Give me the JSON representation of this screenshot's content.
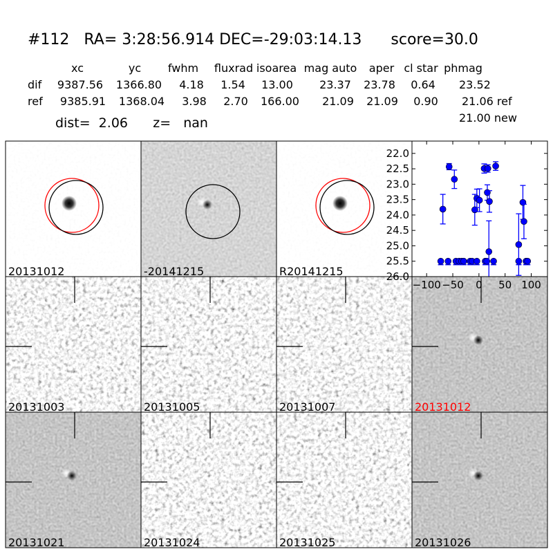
{
  "header": {
    "title": "#112   RA= 3:28:56.914 DEC=-29:03:14.13      score=30.0",
    "columns": [
      "xc",
      "yc",
      "fwhm",
      "fluxrad",
      "isoarea",
      "mag auto",
      "aper",
      "cl star",
      "phmag"
    ],
    "rows": [
      {
        "label": "dif",
        "values": [
          "9387.56",
          "1366.80",
          "4.18",
          "1.54",
          "13.00",
          "23.37",
          "23.78",
          "0.64",
          "23.52"
        ]
      },
      {
        "label": "ref",
        "values": [
          "9385.91",
          "1368.04",
          "3.98",
          "2.70",
          "166.00",
          "21.09",
          "21.09",
          "0.90",
          "21.06 ref"
        ]
      }
    ],
    "extra_phmag": "21.00 new",
    "dist_line": "dist=  2.06      z=   nan"
  },
  "panels": [
    {
      "label": "20131012",
      "style": "light",
      "source": "dark",
      "circles": [
        "red",
        "black"
      ],
      "label_color": "#000000"
    },
    {
      "label": "-20141215",
      "style": "mid",
      "source": "dipole",
      "circles": [
        "black"
      ],
      "label_color": "#000000"
    },
    {
      "label": "R20141215",
      "style": "light",
      "source": "dark",
      "circles": [
        "red",
        "black"
      ],
      "label_color": "#000000"
    },
    {
      "label": "20131003",
      "style": "noisy",
      "source": "none",
      "crosshair": true,
      "label_color": "#000000"
    },
    {
      "label": "20131005",
      "style": "noisy",
      "source": "none",
      "crosshair": true,
      "label_color": "#000000"
    },
    {
      "label": "20131007",
      "style": "noisy",
      "source": "none",
      "crosshair": true,
      "label_color": "#000000"
    },
    {
      "label": "20131012",
      "style": "smooth",
      "source": "dipole",
      "crosshair": true,
      "label_color": "#ff0000"
    },
    {
      "label": "20131021",
      "style": "smooth",
      "source": "dipole",
      "crosshair": true,
      "label_color": "#000000"
    },
    {
      "label": "20131024",
      "style": "noisy",
      "source": "none",
      "crosshair": true,
      "label_color": "#000000"
    },
    {
      "label": "20131025",
      "style": "noisy",
      "source": "none",
      "crosshair": true,
      "label_color": "#000000"
    },
    {
      "label": "20131026",
      "style": "smooth",
      "source": "dipole",
      "crosshair": true,
      "label_color": "#000000"
    }
  ],
  "chart_data": {
    "type": "scatter",
    "title": "",
    "xlabel": "",
    "ylabel": "",
    "xlim": [
      -128,
      131
    ],
    "ylim": [
      26.0,
      21.6
    ],
    "y_inverted": true,
    "xticks": [
      -100,
      -50,
      0,
      50,
      100
    ],
    "xtick_labels": [
      "−100",
      "−50",
      "0",
      "50",
      "100"
    ],
    "yticks": [
      22.0,
      22.5,
      23.0,
      23.5,
      24.0,
      24.5,
      25.0,
      25.5,
      26.0
    ],
    "ytick_labels": [
      "22.0",
      "22.5",
      "23.0",
      "23.5",
      "24.0",
      "24.5",
      "25.0",
      "25.5",
      "26.0"
    ],
    "color": "#0000ff",
    "detections": [
      {
        "x": -69,
        "y": 23.81,
        "err": 0.48
      },
      {
        "x": -57,
        "y": 22.43,
        "err": 0.1
      },
      {
        "x": -47,
        "y": 22.84,
        "err": 0.3
      },
      {
        "x": -8,
        "y": 23.83,
        "err": 0.5
      },
      {
        "x": -4,
        "y": 23.46,
        "err": 0.3
      },
      {
        "x": 1,
        "y": 23.52,
        "err": 0.37
      },
      {
        "x": 10,
        "y": 22.49,
        "err": 0.15
      },
      {
        "x": 17,
        "y": 22.49,
        "err": 0.12
      },
      {
        "x": 16,
        "y": 23.27,
        "err": 0.25
      },
      {
        "x": 20,
        "y": 23.56,
        "err": 0.35
      },
      {
        "x": 19,
        "y": 25.19,
        "err": 1.0
      },
      {
        "x": 32,
        "y": 22.41,
        "err": 0.14
      },
      {
        "x": 76,
        "y": 24.96,
        "err": 1.0
      },
      {
        "x": 84,
        "y": 23.59,
        "err": 0.55
      },
      {
        "x": 86,
        "y": 24.21,
        "err": 0.56
      }
    ],
    "upper_limits": {
      "y": 25.5,
      "x": [
        -73,
        -59,
        -44,
        -38,
        -33,
        -29,
        -17,
        -13,
        -4,
        12,
        15,
        28,
        76,
        90,
        93
      ]
    }
  }
}
